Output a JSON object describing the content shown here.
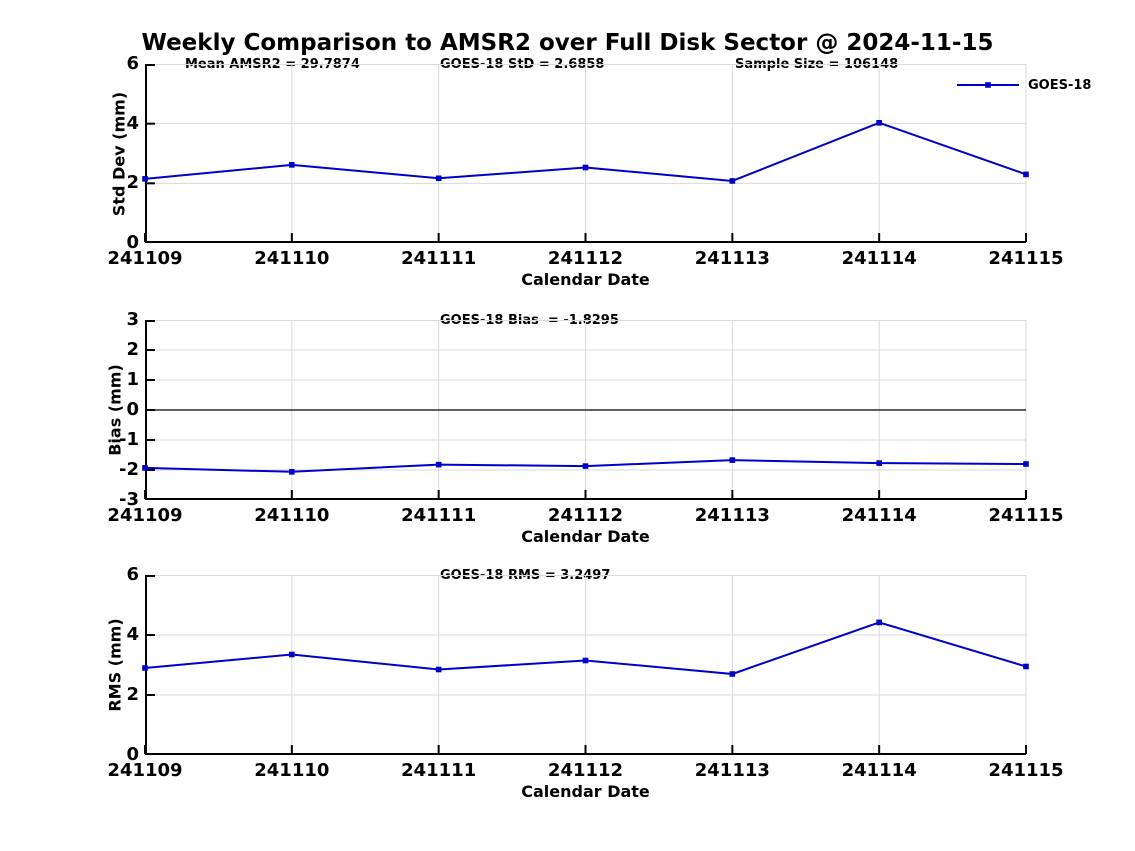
{
  "title": "Weekly Comparison to AMSR2 over Full Disk Sector @ 2024-11-15",
  "colors": {
    "line": "#0000CC",
    "grid": "#d9d9d9",
    "axis": "#000000",
    "zero_line": "#000000",
    "text": "#000000",
    "background": "#ffffff"
  },
  "chart_data": [
    {
      "type": "line",
      "ylabel": "Std Dev (mm)",
      "xlabel": "Calendar Date",
      "annotations": [
        "Mean AMSR2 = 29.7874",
        "GOES-18 StD = 2.6858",
        "Sample Size = 106148"
      ],
      "x": [
        "241109",
        "241110",
        "241111",
        "241112",
        "241113",
        "241114",
        "241115"
      ],
      "series": [
        {
          "name": "GOES-18",
          "values": [
            2.15,
            2.62,
            2.17,
            2.53,
            2.08,
            4.03,
            2.3
          ]
        }
      ],
      "ylim": [
        0,
        6
      ],
      "yticks": [
        0,
        2,
        4,
        6
      ],
      "grid": true,
      "legend": {
        "label": "GOES-18",
        "position": "top-right"
      }
    },
    {
      "type": "line",
      "ylabel": "Bias (mm)",
      "xlabel": "Calendar Date",
      "annotations": [
        "GOES-18 Bias  = -1.8295"
      ],
      "x": [
        "241109",
        "241110",
        "241111",
        "241112",
        "241113",
        "241114",
        "241115"
      ],
      "series": [
        {
          "name": "GOES-18",
          "values": [
            -1.93,
            -2.06,
            -1.82,
            -1.87,
            -1.67,
            -1.77,
            -1.8
          ]
        }
      ],
      "ylim": [
        -3,
        3
      ],
      "yticks": [
        -3,
        -2,
        -1,
        0,
        1,
        2,
        3
      ],
      "zero_line": true,
      "grid": true
    },
    {
      "type": "line",
      "ylabel": "RMS (mm)",
      "xlabel": "Calendar Date",
      "annotations": [
        "GOES-18 RMS = 3.2497"
      ],
      "x": [
        "241109",
        "241110",
        "241111",
        "241112",
        "241113",
        "241114",
        "241115"
      ],
      "series": [
        {
          "name": "GOES-18",
          "values": [
            2.9,
            3.35,
            2.85,
            3.15,
            2.7,
            4.42,
            2.95
          ]
        }
      ],
      "ylim": [
        0,
        6
      ],
      "yticks": [
        0,
        2,
        4,
        6
      ],
      "grid": true
    }
  ]
}
